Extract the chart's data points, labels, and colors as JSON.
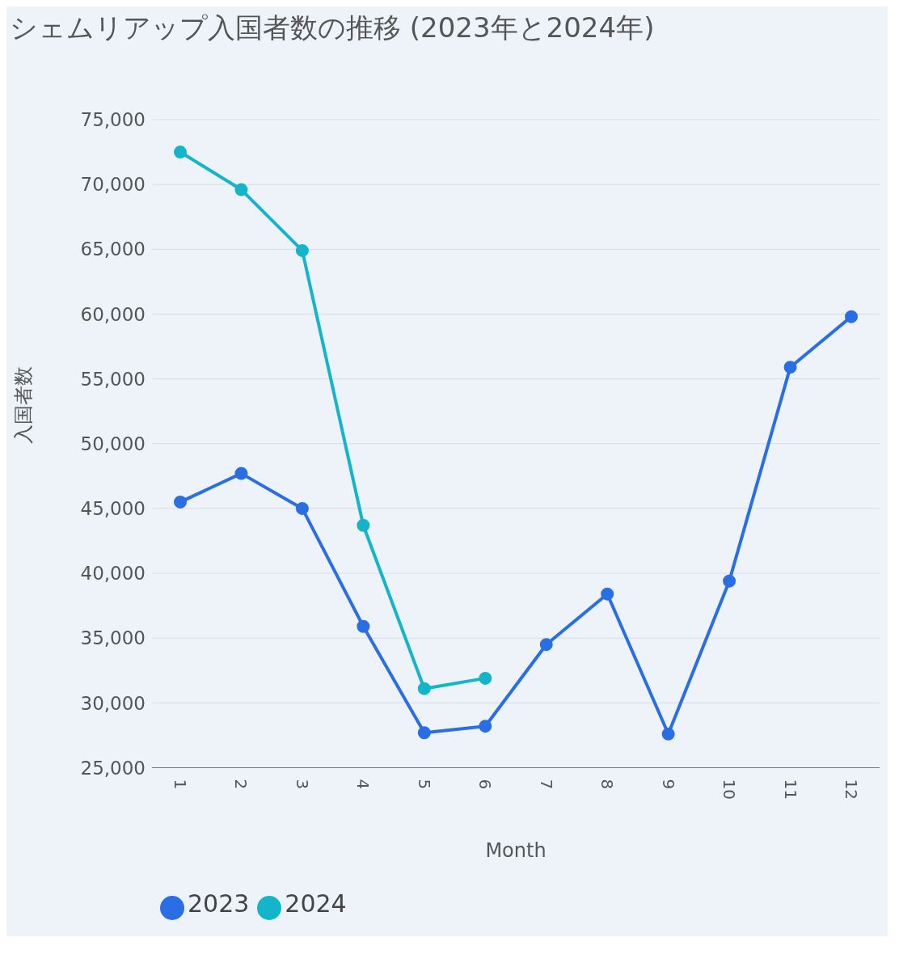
{
  "chart_data": {
    "type": "line",
    "title": "シェムリアップ入国者数の推移 (2023年と2024年)",
    "xlabel": "Month",
    "ylabel": "入国者数",
    "categories": [
      "1",
      "2",
      "3",
      "4",
      "5",
      "6",
      "7",
      "8",
      "9",
      "10",
      "11",
      "12"
    ],
    "series": [
      {
        "name": "2023",
        "color": "#2a6ee6",
        "values": [
          45500,
          47700,
          45000,
          35900,
          27700,
          28200,
          34500,
          38400,
          27600,
          39400,
          55900,
          59800
        ]
      },
      {
        "name": "2024",
        "color": "#14b4ca",
        "values": [
          72500,
          69600,
          64900,
          43700,
          31100,
          31900,
          null,
          null,
          null,
          null,
          null,
          null
        ]
      }
    ],
    "ylim": [
      25000,
      75000
    ],
    "yticks": [
      {
        "value": 25000,
        "label": "25,000"
      },
      {
        "value": 30000,
        "label": "30,000"
      },
      {
        "value": 35000,
        "label": "35,000"
      },
      {
        "value": 40000,
        "label": "40,000"
      },
      {
        "value": 45000,
        "label": "45,000"
      },
      {
        "value": 50000,
        "label": "50,000"
      },
      {
        "value": 55000,
        "label": "55,000"
      },
      {
        "value": 60000,
        "label": "60,000"
      },
      {
        "value": 65000,
        "label": "65,000"
      },
      {
        "value": 70000,
        "label": "70,000"
      },
      {
        "value": 75000,
        "label": "75,000"
      }
    ],
    "grid": "y",
    "legend": "bottom left",
    "marker": "circle",
    "line_style": "solid"
  }
}
